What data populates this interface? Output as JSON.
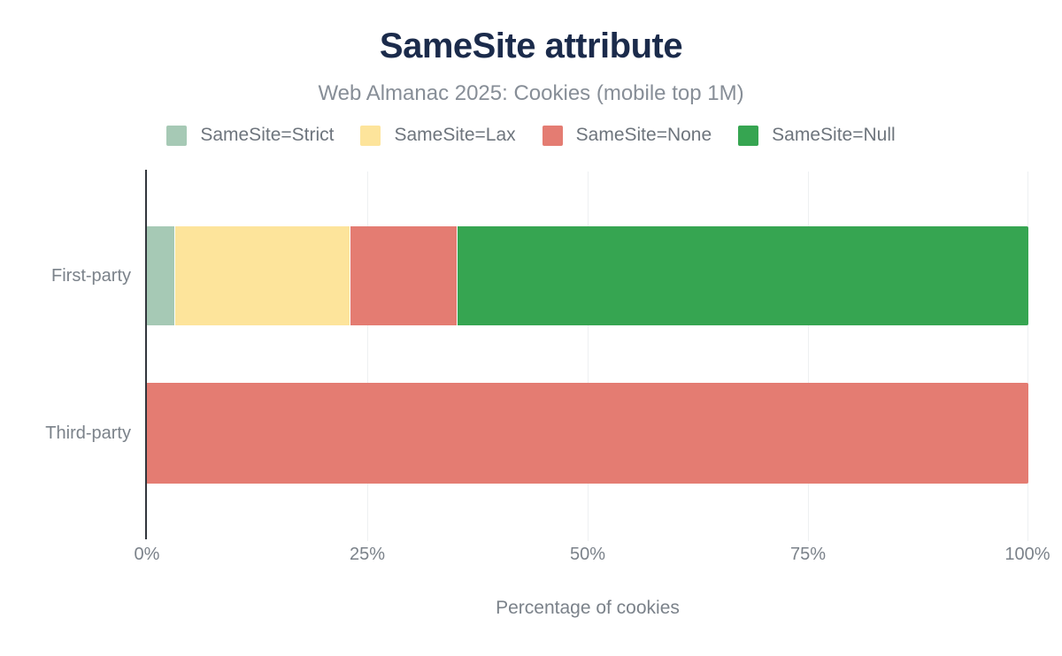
{
  "header": {
    "title": "SameSite attribute",
    "subtitle": "Web Almanac 2025: Cookies (mobile top 1M)"
  },
  "chart_data": {
    "type": "bar",
    "orientation": "horizontal",
    "stacked": true,
    "title": "SameSite attribute",
    "subtitle": "Web Almanac 2025: Cookies (mobile top 1M)",
    "xlabel": "Percentage of cookies",
    "ylabel": "",
    "categories": [
      "First-party",
      "Third-party"
    ],
    "series": [
      {
        "name": "SameSite=Strict",
        "color": "#a6c9b5",
        "values": [
          3.2,
          0
        ]
      },
      {
        "name": "SameSite=Lax",
        "color": "#fde49b",
        "values": [
          19.9,
          0
        ]
      },
      {
        "name": "SameSite=None",
        "color": "#e47c72",
        "values": [
          12.1,
          100
        ]
      },
      {
        "name": "SameSite=Null",
        "color": "#36a551",
        "values": [
          64.8,
          0
        ]
      }
    ],
    "x_ticks": [
      "0%",
      "25%",
      "50%",
      "75%",
      "100%"
    ],
    "xlim": [
      0,
      100
    ],
    "grid": "vertical-25-50-75-100",
    "legend_position": "top"
  },
  "colors": {
    "title_navy": "#1b2b4b",
    "subtitle_gray": "#878e97",
    "legend_text_gray": "#6e757d",
    "axis_label_gray": "#7b828a",
    "axis_line_dark": "#32363c",
    "gridline_light": "#eef0f2",
    "background": "#ffffff"
  }
}
